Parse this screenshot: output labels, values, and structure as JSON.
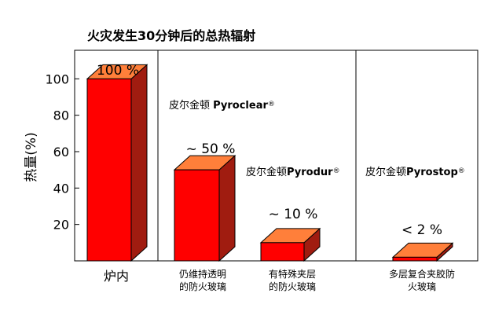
{
  "chart_data": {
    "type": "bar",
    "title": "火灾发生30分钟后的总热辐射",
    "ylabel": "热量(%)",
    "ylim": [
      0,
      120
    ],
    "yticks": [
      20,
      40,
      60,
      80,
      100
    ],
    "categories": [
      "炉内",
      "仍维持透明\n的防火玻璃",
      "有特殊夹层\n的防火玻璃",
      "多层复合夹胶防\n火玻璃"
    ],
    "values": [
      100,
      50,
      10,
      2
    ],
    "value_labels": [
      "100 %",
      "~ 50 %",
      "~ 10 %",
      "< 2 %"
    ],
    "products": [
      "",
      "皮尔金顿 Pyroclear®",
      "皮尔金顿Pyrodur®",
      "皮尔金顿Pyrostop®"
    ],
    "colors": {
      "front": "#ff0000",
      "top": "#ff7f3a",
      "side": "#a01c10",
      "axis": "#000000"
    }
  }
}
